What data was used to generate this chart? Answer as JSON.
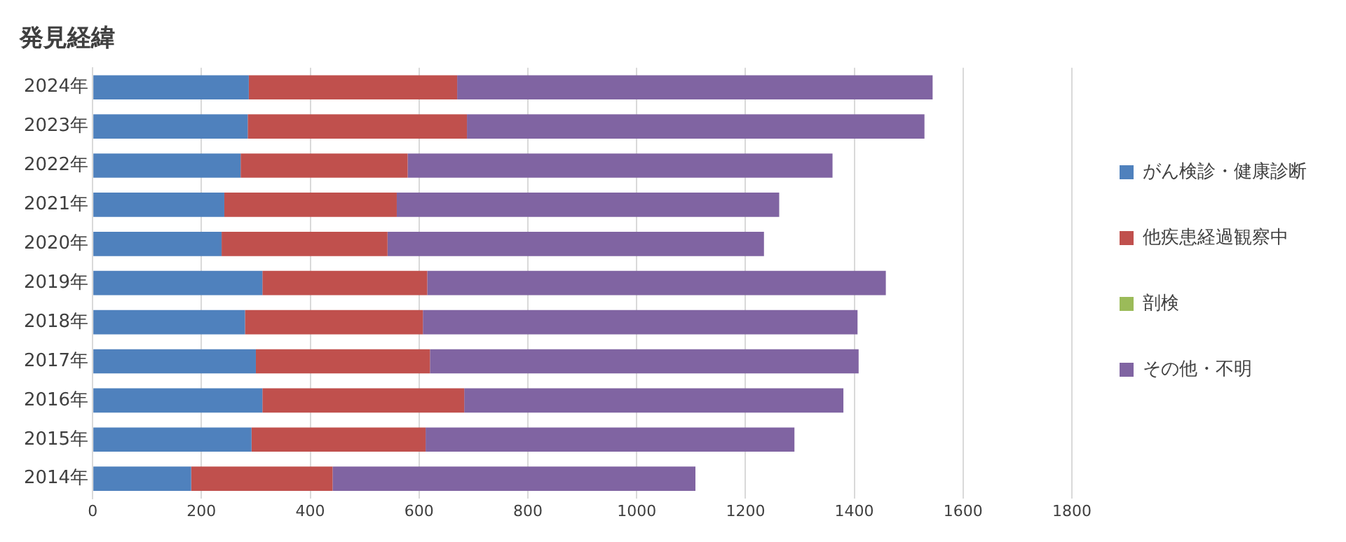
{
  "chart_data": {
    "type": "bar",
    "title": "発見経緯",
    "orientation": "horizontal",
    "stacked": true,
    "categories": [
      "2024年",
      "2023年",
      "2022年",
      "2021年",
      "2020年",
      "2019年",
      "2018年",
      "2017年",
      "2016年",
      "2015年",
      "2014年"
    ],
    "series": [
      {
        "name": "がん検診・健康診断",
        "color": "#4f81bd",
        "values": [
          287,
          285,
          272,
          242,
          237,
          312,
          280,
          300,
          312,
          292,
          181
        ]
      },
      {
        "name": "他疾患経過観察中",
        "color": "#c0504d",
        "values": [
          383,
          403,
          307,
          317,
          305,
          303,
          327,
          320,
          371,
          320,
          260
        ]
      },
      {
        "name": "剖検",
        "color": "#9bbb59",
        "values": [
          0,
          0,
          0,
          0,
          0,
          0,
          0,
          0,
          0,
          0,
          0
        ]
      },
      {
        "name": "その他・不明",
        "color": "#8064a2",
        "values": [
          874,
          841,
          781,
          703,
          692,
          843,
          799,
          788,
          697,
          678,
          667
        ]
      }
    ],
    "xlim": [
      0,
      1800
    ],
    "xticks": [
      0,
      200,
      400,
      600,
      800,
      1000,
      1200,
      1400,
      1600,
      1800
    ],
    "grid": "x",
    "legend": "right"
  }
}
